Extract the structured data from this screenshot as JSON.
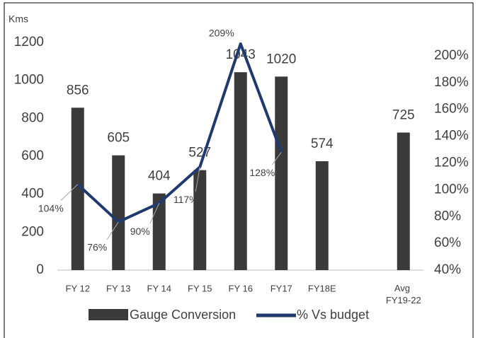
{
  "chart_data": {
    "type": "bar",
    "y_axis_label": "Kms",
    "categories": [
      "FY 12",
      "FY 13",
      "FY 14",
      "FY 15",
      "FY 16",
      "FY17",
      "FY18E",
      null,
      "Avg FY19-22"
    ],
    "series": [
      {
        "name": "Gauge Conversion",
        "type": "bar",
        "color": "#3a3a3a",
        "axis": "y",
        "values": [
          856,
          605,
          404,
          527,
          1043,
          1020,
          574,
          null,
          725
        ]
      },
      {
        "name": "% Vs budget",
        "type": "line",
        "color": "#1f3a6e",
        "axis": "y2",
        "values": [
          104,
          76,
          90,
          117,
          209,
          128,
          null,
          null,
          null
        ],
        "value_labels": [
          "104%",
          "76%",
          "90%",
          "117%",
          "209%",
          "128%",
          null,
          null,
          null
        ]
      }
    ],
    "ylim": [
      0,
      1200
    ],
    "yticks": [
      0,
      200,
      400,
      600,
      800,
      1000,
      1200
    ],
    "y2lim": [
      40,
      210
    ],
    "y2ticks": [
      {
        "value": 40,
        "label": "40%"
      },
      {
        "value": 60,
        "label": "60%"
      },
      {
        "value": 80,
        "label": "80%"
      },
      {
        "value": 100,
        "label": "100%"
      },
      {
        "value": 120,
        "label": "120%"
      },
      {
        "value": 140,
        "label": "140%"
      },
      {
        "value": 160,
        "label": "160%"
      },
      {
        "value": 180,
        "label": "180%"
      },
      {
        "value": 200,
        "label": "200%"
      }
    ],
    "legend": "bottom",
    "grid": false
  }
}
